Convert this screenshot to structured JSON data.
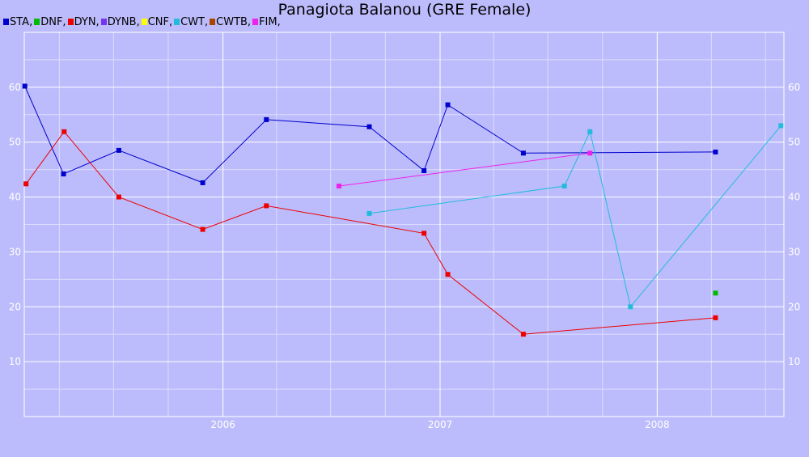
{
  "title": "Panagiota Balanou (GRE Female)",
  "chart_data": {
    "type": "line",
    "title": "Panagiota Balanou (GRE Female)",
    "x_axis": {
      "ticks": [
        "2006",
        "2007",
        "2008"
      ],
      "range": [
        "2005-02-01",
        "2008-08-01"
      ]
    },
    "y_axis": {
      "ticks": [
        10,
        20,
        30,
        40,
        50,
        60
      ],
      "range": [
        0,
        70
      ],
      "left_and_right_labels": true
    },
    "grid": true,
    "legend_placement": "top-left",
    "series": [
      {
        "name": "STA",
        "color": "#0000cc",
        "points": [
          [
            "2005-02-02",
            60.2
          ],
          [
            "2005-04-08",
            44.2
          ],
          [
            "2005-07-10",
            48.5
          ],
          [
            "2005-11-28",
            42.6
          ],
          [
            "2006-03-15",
            54.1
          ],
          [
            "2006-09-04",
            52.8
          ],
          [
            "2006-12-05",
            44.8
          ],
          [
            "2007-01-14",
            56.8
          ],
          [
            "2007-05-21",
            48.0
          ],
          [
            "2008-04-08",
            48.2
          ]
        ]
      },
      {
        "name": "DNF",
        "color": "#00bb00",
        "points": [
          [
            "2008-04-08",
            22.5
          ]
        ]
      },
      {
        "name": "DYN",
        "color": "#ee0000",
        "points": [
          [
            "2005-02-04",
            42.4
          ],
          [
            "2005-04-09",
            51.9
          ],
          [
            "2005-07-10",
            40.0
          ],
          [
            "2005-11-28",
            34.1
          ],
          [
            "2006-03-15",
            38.4
          ],
          [
            "2006-12-05",
            33.4
          ],
          [
            "2007-01-14",
            25.9
          ],
          [
            "2007-05-21",
            15.0
          ],
          [
            "2008-04-08",
            18.0
          ]
        ]
      },
      {
        "name": "DYNB",
        "color": "#7733ee",
        "points": []
      },
      {
        "name": "CNF",
        "color": "#ffff00",
        "points": []
      },
      {
        "name": "CWT",
        "color": "#22bbdd",
        "points": [
          [
            "2006-09-04",
            37.0
          ],
          [
            "2007-07-29",
            42.0
          ],
          [
            "2007-09-10",
            51.9
          ],
          [
            "2007-11-17",
            20.0
          ],
          [
            "2008-07-27",
            53.0
          ]
        ]
      },
      {
        "name": "CWTB",
        "color": "#aa4400",
        "points": []
      },
      {
        "name": "FIM",
        "color": "#ee22ee",
        "points": [
          [
            "2006-07-15",
            42.0
          ],
          [
            "2007-09-10",
            48.0
          ]
        ]
      }
    ]
  }
}
